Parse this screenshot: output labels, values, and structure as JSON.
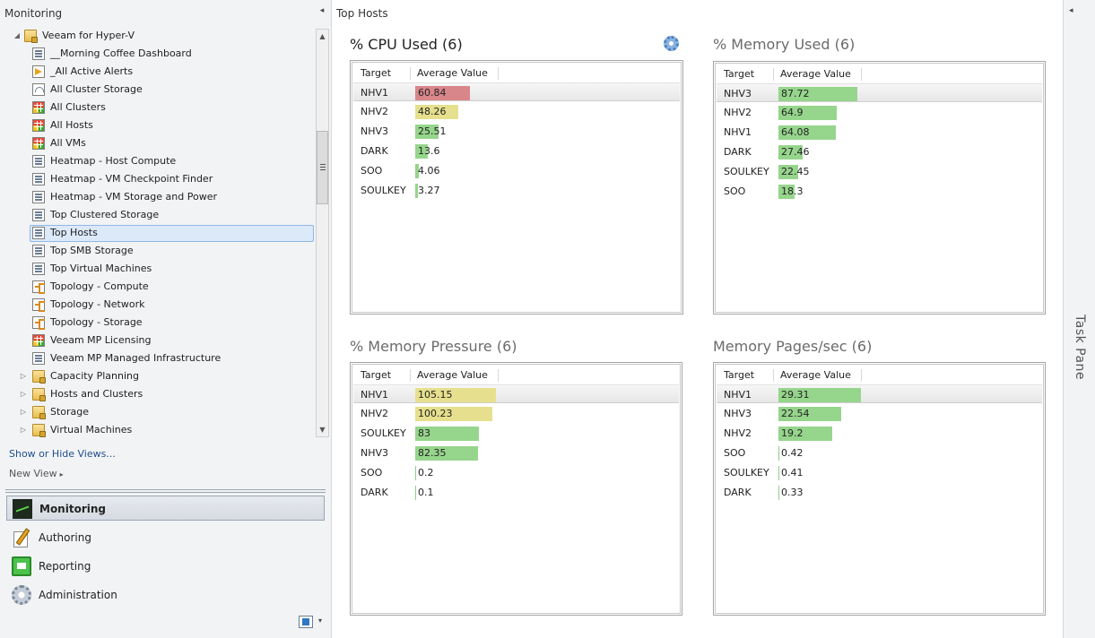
{
  "nav": {
    "title": "Monitoring",
    "collapse_glyph": "◂",
    "tree": [
      {
        "label": "Veeam for Hyper-V",
        "icon": "folder-lock",
        "level": 0,
        "expander": "◢"
      },
      {
        "label": "__Morning Coffee Dashboard",
        "icon": "view",
        "level": 1
      },
      {
        "label": "_All Active Alerts",
        "icon": "alert",
        "level": 1
      },
      {
        "label": "All Cluster Storage",
        "icon": "gauge",
        "level": 1
      },
      {
        "label": "All Clusters",
        "icon": "grid",
        "level": 1
      },
      {
        "label": "All Hosts",
        "icon": "grid",
        "level": 1
      },
      {
        "label": "All VMs",
        "icon": "grid",
        "level": 1
      },
      {
        "label": "Heatmap - Host Compute",
        "icon": "view",
        "level": 1
      },
      {
        "label": "Heatmap - VM Checkpoint Finder",
        "icon": "view",
        "level": 1
      },
      {
        "label": "Heatmap - VM Storage and Power",
        "icon": "view",
        "level": 1
      },
      {
        "label": "Top Clustered Storage",
        "icon": "view",
        "level": 1
      },
      {
        "label": "Top Hosts",
        "icon": "view",
        "level": 1,
        "selected": true
      },
      {
        "label": "Top SMB Storage",
        "icon": "view",
        "level": 1
      },
      {
        "label": "Top Virtual Machines",
        "icon": "view",
        "level": 1
      },
      {
        "label": "Topology - Compute",
        "icon": "topo",
        "level": 1
      },
      {
        "label": "Topology - Network",
        "icon": "topo",
        "level": 1
      },
      {
        "label": "Topology - Storage",
        "icon": "topo",
        "level": 1
      },
      {
        "label": "Veeam MP Licensing",
        "icon": "grid",
        "level": 1
      },
      {
        "label": "Veeam MP Managed Infrastructure",
        "icon": "view",
        "level": 1
      },
      {
        "label": "Capacity Planning",
        "icon": "folder-lock",
        "level": 1,
        "expander": "▷"
      },
      {
        "label": "Hosts and Clusters",
        "icon": "folder-lock",
        "level": 1,
        "expander": "▷"
      },
      {
        "label": "Storage",
        "icon": "folder-lock",
        "level": 1,
        "expander": "▷"
      },
      {
        "label": "Virtual Machines",
        "icon": "folder-lock",
        "level": 1,
        "expander": "▷"
      }
    ],
    "scroll_up_glyph": "▲",
    "scroll_down_glyph": "▼",
    "show_hide": "Show or Hide Views...",
    "new_view": "New View",
    "new_view_arrow": "▸",
    "wunderbar": [
      {
        "label": "Monitoring",
        "icon": "monitoring-icon",
        "active": true
      },
      {
        "label": "Authoring",
        "icon": "authoring-icon"
      },
      {
        "label": "Reporting",
        "icon": "reporting-icon"
      },
      {
        "label": "Administration",
        "icon": "administration-icon"
      }
    ],
    "config_arrow": "▾"
  },
  "main": {
    "title": "Top Hosts",
    "col_target": "Target",
    "col_value": "Average Value",
    "widgets": [
      {
        "title": "% CPU Used (6)",
        "dim": false,
        "rows": [
          {
            "target": "NHV1",
            "value": "60.84",
            "num": 60.84,
            "color": "#d9868a"
          },
          {
            "target": "NHV2",
            "value": "48.26",
            "num": 48.26,
            "color": "#e6e08e"
          },
          {
            "target": "NHV3",
            "value": "25.51",
            "num": 25.51,
            "color": "#96d58c"
          },
          {
            "target": "DARK",
            "value": "13.6",
            "num": 13.6,
            "color": "#96d58c"
          },
          {
            "target": "SOO",
            "value": "4.06",
            "num": 4.06,
            "color": "#96d58c"
          },
          {
            "target": "SOULKEY",
            "value": "3.27",
            "num": 3.27,
            "color": "#96d58c"
          }
        ],
        "max": 100
      },
      {
        "title": "% Memory Used (6)",
        "dim": true,
        "rows": [
          {
            "target": "NHV3",
            "value": "87.72",
            "num": 87.72,
            "color": "#96d58c"
          },
          {
            "target": "NHV2",
            "value": "64.9",
            "num": 64.9,
            "color": "#96d58c"
          },
          {
            "target": "NHV1",
            "value": "64.08",
            "num": 64.08,
            "color": "#96d58c"
          },
          {
            "target": "DARK",
            "value": "27.46",
            "num": 27.46,
            "color": "#96d58c"
          },
          {
            "target": "SOULKEY",
            "value": "22.45",
            "num": 22.45,
            "color": "#96d58c"
          },
          {
            "target": "SOO",
            "value": "18.3",
            "num": 18.3,
            "color": "#96d58c"
          }
        ],
        "max": 100
      },
      {
        "title": "% Memory Pressure (6)",
        "dim": true,
        "rows": [
          {
            "target": "NHV1",
            "value": "105.15",
            "num": 105.15,
            "color": "#e6e08e"
          },
          {
            "target": "NHV2",
            "value": "100.23",
            "num": 100.23,
            "color": "#e6e08e"
          },
          {
            "target": "SOULKEY",
            "value": "83",
            "num": 83,
            "color": "#96d58c"
          },
          {
            "target": "NHV3",
            "value": "82.35",
            "num": 82.35,
            "color": "#96d58c"
          },
          {
            "target": "SOO",
            "value": "0.2",
            "num": 0.2,
            "color": "#96d58c"
          },
          {
            "target": "DARK",
            "value": "0.1",
            "num": 0.1,
            "color": "#96d58c"
          }
        ],
        "max": 117
      },
      {
        "title": "Memory Pages/sec (6)",
        "dim": true,
        "rows": [
          {
            "target": "NHV1",
            "value": "29.31",
            "num": 29.31,
            "color": "#96d58c"
          },
          {
            "target": "NHV3",
            "value": "22.54",
            "num": 22.54,
            "color": "#96d58c"
          },
          {
            "target": "NHV2",
            "value": "19.2",
            "num": 19.2,
            "color": "#96d58c"
          },
          {
            "target": "SOO",
            "value": "0.42",
            "num": 0.42,
            "color": "#96d58c"
          },
          {
            "target": "SOULKEY",
            "value": "0.41",
            "num": 0.41,
            "color": "#96d58c"
          },
          {
            "target": "DARK",
            "value": "0.33",
            "num": 0.33,
            "color": "#96d58c"
          }
        ],
        "max": 32
      }
    ]
  },
  "task_pane": {
    "label": "Task Pane",
    "collapse_glyph": "◂"
  }
}
